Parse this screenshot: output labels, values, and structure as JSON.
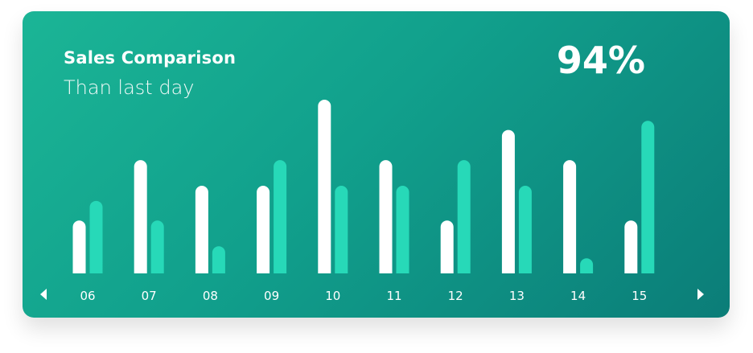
{
  "card": {
    "title": "Sales Comparison",
    "subtitle": "Than last day",
    "percent": "94%"
  },
  "navigation": {
    "prev_icon": "caret-left-icon",
    "next_icon": "caret-right-icon"
  },
  "colors": {
    "gradient_start": "#1bb596",
    "gradient_end": "#0b7d78",
    "bar_primary": "#ffffff",
    "bar_secondary": "#27d9b8"
  },
  "chart_data": {
    "type": "bar",
    "categories": [
      "06",
      "07",
      "08",
      "09",
      "10",
      "11",
      "12",
      "13",
      "14",
      "15"
    ],
    "series": [
      {
        "values": [
          3.5,
          7.5,
          5.8,
          5.8,
          11.5,
          7.5,
          3.5,
          9.5,
          7.5,
          3.5
        ]
      },
      {
        "values": [
          4.8,
          3.5,
          1.8,
          7.5,
          5.8,
          5.8,
          7.5,
          5.8,
          1.0,
          10.1
        ]
      }
    ],
    "ylim": [
      0,
      11.5
    ],
    "grid": false,
    "legend": "none"
  }
}
